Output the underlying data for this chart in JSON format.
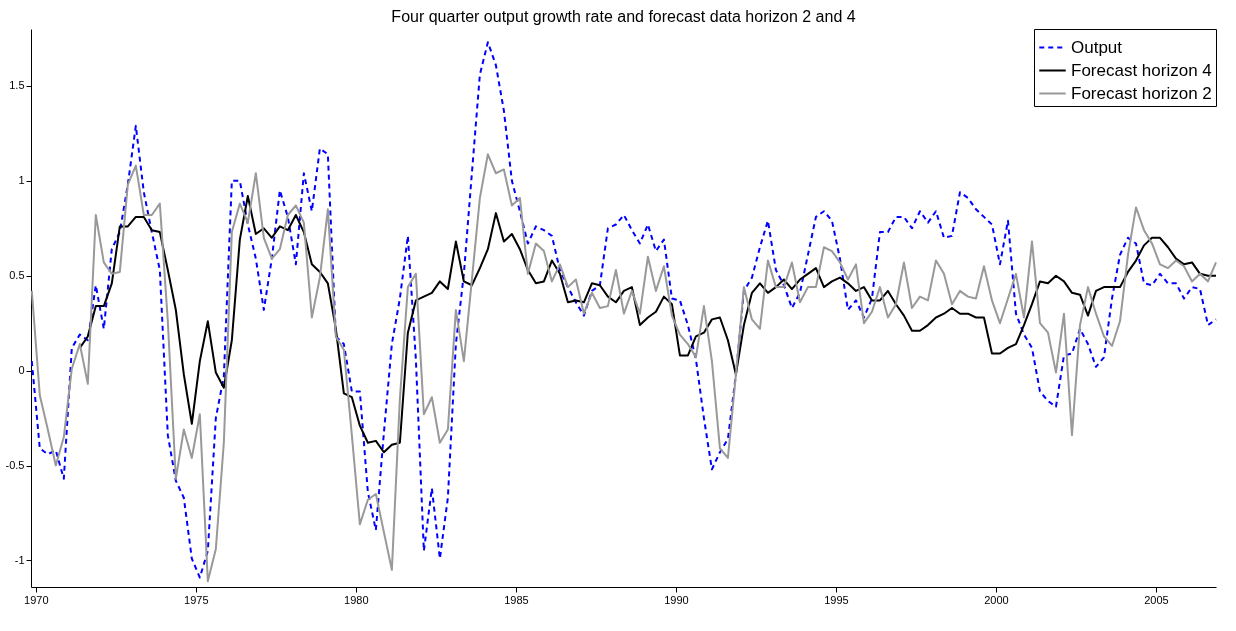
{
  "chart_data": {
    "type": "line",
    "title": "Four quarter output growth rate and forecast data horizon 2 and 4",
    "x": [
      1969.875,
      1970.125,
      1970.375,
      1970.625,
      1970.875,
      1971.125,
      1971.375,
      1971.625,
      1971.875,
      1972.125,
      1972.375,
      1972.625,
      1972.875,
      1973.125,
      1973.375,
      1973.625,
      1973.875,
      1974.125,
      1974.375,
      1974.625,
      1974.875,
      1975.125,
      1975.375,
      1975.625,
      1975.875,
      1976.125,
      1976.375,
      1976.625,
      1976.875,
      1977.125,
      1977.375,
      1977.625,
      1977.875,
      1978.125,
      1978.375,
      1978.625,
      1978.875,
      1979.125,
      1979.375,
      1979.625,
      1979.875,
      1980.125,
      1980.375,
      1980.625,
      1980.875,
      1981.125,
      1981.375,
      1981.625,
      1981.875,
      1982.125,
      1982.375,
      1982.625,
      1982.875,
      1983.125,
      1983.375,
      1983.625,
      1983.875,
      1984.125,
      1984.375,
      1984.625,
      1984.875,
      1985.125,
      1985.375,
      1985.625,
      1985.875,
      1986.125,
      1986.375,
      1986.625,
      1986.875,
      1987.125,
      1987.375,
      1987.625,
      1987.875,
      1988.125,
      1988.375,
      1988.625,
      1988.875,
      1989.125,
      1989.375,
      1989.625,
      1989.875,
      1990.125,
      1990.375,
      1990.625,
      1990.875,
      1991.125,
      1991.375,
      1991.625,
      1991.875,
      1992.125,
      1992.375,
      1992.625,
      1992.875,
      1993.125,
      1993.375,
      1993.625,
      1993.875,
      1994.125,
      1994.375,
      1994.625,
      1994.875,
      1995.125,
      1995.375,
      1995.625,
      1995.875,
      1996.125,
      1996.375,
      1996.625,
      1996.875,
      1997.125,
      1997.375,
      1997.625,
      1997.875,
      1998.125,
      1998.375,
      1998.625,
      1998.875,
      1999.125,
      1999.375,
      1999.625,
      1999.875,
      2000.125,
      2000.375,
      2000.625,
      2000.875,
      2001.125,
      2001.375,
      2001.625,
      2001.875,
      2002.125,
      2002.375,
      2002.625,
      2002.875,
      2003.125,
      2003.375,
      2003.625,
      2003.875,
      2004.125,
      2004.375,
      2004.625,
      2004.875,
      2005.125,
      2005.375,
      2005.625,
      2005.875,
      2006.125,
      2006.375,
      2006.625,
      2006.875
    ],
    "series": [
      {
        "name": "Output",
        "color": "#0000ff",
        "line_style": "dashed",
        "values": [
          0.05,
          -0.41,
          -0.44,
          -0.42,
          -0.57,
          0.12,
          0.19,
          0.16,
          0.45,
          0.22,
          0.64,
          0.73,
          0.98,
          1.29,
          0.94,
          0.73,
          0.53,
          -0.34,
          -0.58,
          -0.67,
          -0.99,
          -1.09,
          -0.95,
          -0.25,
          -0.03,
          1.0,
          1.0,
          0.77,
          0.59,
          0.32,
          0.59,
          0.95,
          0.81,
          0.56,
          1.04,
          0.84,
          1.17,
          1.14,
          0.18,
          0.14,
          -0.11,
          -0.11,
          -0.64,
          -0.84,
          -0.33,
          0.14,
          0.38,
          0.71,
          0.06,
          -0.95,
          -0.62,
          -0.99,
          -0.67,
          0.14,
          0.51,
          1.04,
          1.56,
          1.73,
          1.61,
          1.37,
          1.0,
          0.84,
          0.67,
          0.76,
          0.74,
          0.71,
          0.53,
          0.44,
          0.36,
          0.29,
          0.42,
          0.45,
          0.75,
          0.77,
          0.82,
          0.74,
          0.67,
          0.77,
          0.63,
          0.69,
          0.38,
          0.37,
          0.24,
          0.06,
          -0.25,
          -0.52,
          -0.43,
          -0.36,
          -0.02,
          0.42,
          0.49,
          0.65,
          0.79,
          0.53,
          0.45,
          0.33,
          0.41,
          0.61,
          0.81,
          0.84,
          0.79,
          0.59,
          0.32,
          0.37,
          0.28,
          0.38,
          0.73,
          0.73,
          0.81,
          0.81,
          0.75,
          0.84,
          0.78,
          0.84,
          0.7,
          0.71,
          0.94,
          0.91,
          0.85,
          0.81,
          0.77,
          0.56,
          0.79,
          0.3,
          0.19,
          0.12,
          -0.11,
          -0.16,
          -0.19,
          0.08,
          0.09,
          0.22,
          0.14,
          0.02,
          0.07,
          0.38,
          0.61,
          0.7,
          0.67,
          0.46,
          0.45,
          0.51,
          0.46,
          0.46,
          0.38,
          0.44,
          0.43,
          0.24,
          0.27
        ]
      },
      {
        "name": "Forecast horizon 4",
        "color": "#000000",
        "line_style": "solid",
        "values": [
          null,
          null,
          null,
          null,
          null,
          null,
          0.12,
          0.18,
          0.34,
          0.34,
          0.46,
          0.76,
          0.76,
          0.81,
          0.81,
          0.74,
          0.73,
          0.53,
          0.32,
          -0.02,
          -0.28,
          0.05,
          0.26,
          -0.01,
          -0.09,
          0.16,
          0.69,
          0.92,
          0.72,
          0.75,
          0.7,
          0.76,
          0.74,
          0.82,
          0.73,
          0.56,
          0.52,
          0.46,
          0.22,
          -0.12,
          -0.14,
          -0.29,
          -0.38,
          -0.37,
          -0.43,
          -0.39,
          -0.38,
          0.2,
          0.37,
          0.39,
          0.41,
          0.47,
          0.43,
          0.68,
          0.47,
          0.45,
          0.54,
          0.64,
          0.83,
          0.68,
          0.72,
          0.64,
          0.53,
          0.46,
          0.47,
          0.58,
          0.51,
          0.36,
          0.37,
          0.36,
          0.46,
          0.45,
          0.39,
          0.36,
          0.42,
          0.44,
          0.24,
          0.28,
          0.31,
          0.39,
          0.35,
          0.08,
          0.08,
          0.18,
          0.2,
          0.27,
          0.28,
          0.16,
          -0.02,
          0.24,
          0.41,
          0.46,
          0.41,
          0.44,
          0.48,
          0.43,
          0.48,
          0.51,
          0.54,
          0.44,
          0.47,
          0.49,
          0.46,
          0.42,
          0.44,
          0.37,
          0.37,
          0.42,
          0.35,
          0.29,
          0.21,
          0.21,
          0.24,
          0.28,
          0.3,
          0.33,
          0.3,
          0.3,
          0.28,
          0.28,
          0.09,
          0.09,
          0.12,
          0.14,
          0.24,
          0.35,
          0.47,
          0.46,
          0.5,
          0.47,
          0.41,
          0.4,
          0.29,
          0.42,
          0.44,
          0.44,
          0.44,
          0.52,
          0.58,
          0.66,
          0.7,
          0.7,
          0.65,
          0.59,
          0.56,
          0.57,
          0.51,
          0.5,
          0.5
        ]
      },
      {
        "name": "Forecast horizon 2",
        "color": "#999999",
        "line_style": "solid",
        "values": [
          0.42,
          -0.13,
          -0.31,
          -0.5,
          -0.35,
          0.01,
          0.14,
          -0.07,
          0.82,
          0.57,
          0.51,
          0.52,
          0.98,
          1.08,
          0.82,
          0.82,
          0.88,
          0.26,
          -0.57,
          -0.31,
          -0.46,
          -0.23,
          -1.11,
          -0.94,
          -0.38,
          0.73,
          0.88,
          0.78,
          1.04,
          0.7,
          0.59,
          0.64,
          0.82,
          0.87,
          0.78,
          0.28,
          0.49,
          0.85,
          0.18,
          0.11,
          -0.34,
          -0.81,
          -0.68,
          -0.65,
          -0.85,
          -1.05,
          -0.15,
          0.44,
          0.51,
          -0.23,
          -0.14,
          -0.38,
          -0.31,
          0.32,
          0.05,
          0.48,
          0.91,
          1.14,
          1.04,
          1.06,
          0.87,
          0.91,
          0.51,
          0.67,
          0.63,
          0.47,
          0.56,
          0.44,
          0.48,
          0.3,
          0.41,
          0.33,
          0.34,
          0.53,
          0.3,
          0.42,
          0.3,
          0.6,
          0.42,
          0.55,
          0.29,
          0.19,
          0.14,
          0.07,
          0.34,
          0.05,
          -0.41,
          -0.46,
          -0.02,
          0.44,
          0.27,
          0.22,
          0.58,
          0.44,
          0.44,
          0.57,
          0.36,
          0.44,
          0.44,
          0.65,
          0.63,
          0.57,
          0.48,
          0.56,
          0.25,
          0.31,
          0.44,
          0.28,
          0.35,
          0.57,
          0.33,
          0.39,
          0.37,
          0.58,
          0.51,
          0.35,
          0.42,
          0.39,
          0.38,
          0.55,
          0.37,
          0.25,
          0.38,
          0.51,
          0.28,
          0.68,
          0.25,
          0.2,
          -0.01,
          0.3,
          -0.34,
          0.24,
          0.44,
          0.3,
          0.18,
          0.13,
          0.26,
          0.61,
          0.86,
          0.74,
          0.67,
          0.56,
          0.54,
          0.58,
          0.55,
          0.47,
          0.51,
          0.47,
          0.57
        ]
      }
    ],
    "xlim": [
      1969.85,
      2006.875
    ],
    "xticks": [
      1970,
      1975,
      1980,
      1985,
      1990,
      1995,
      2000,
      2005
    ],
    "ylim": [
      -1.14,
      1.8
    ],
    "yticks": [
      -1,
      -0.5,
      0,
      0.5,
      1,
      1.5
    ],
    "legend": "top right"
  }
}
